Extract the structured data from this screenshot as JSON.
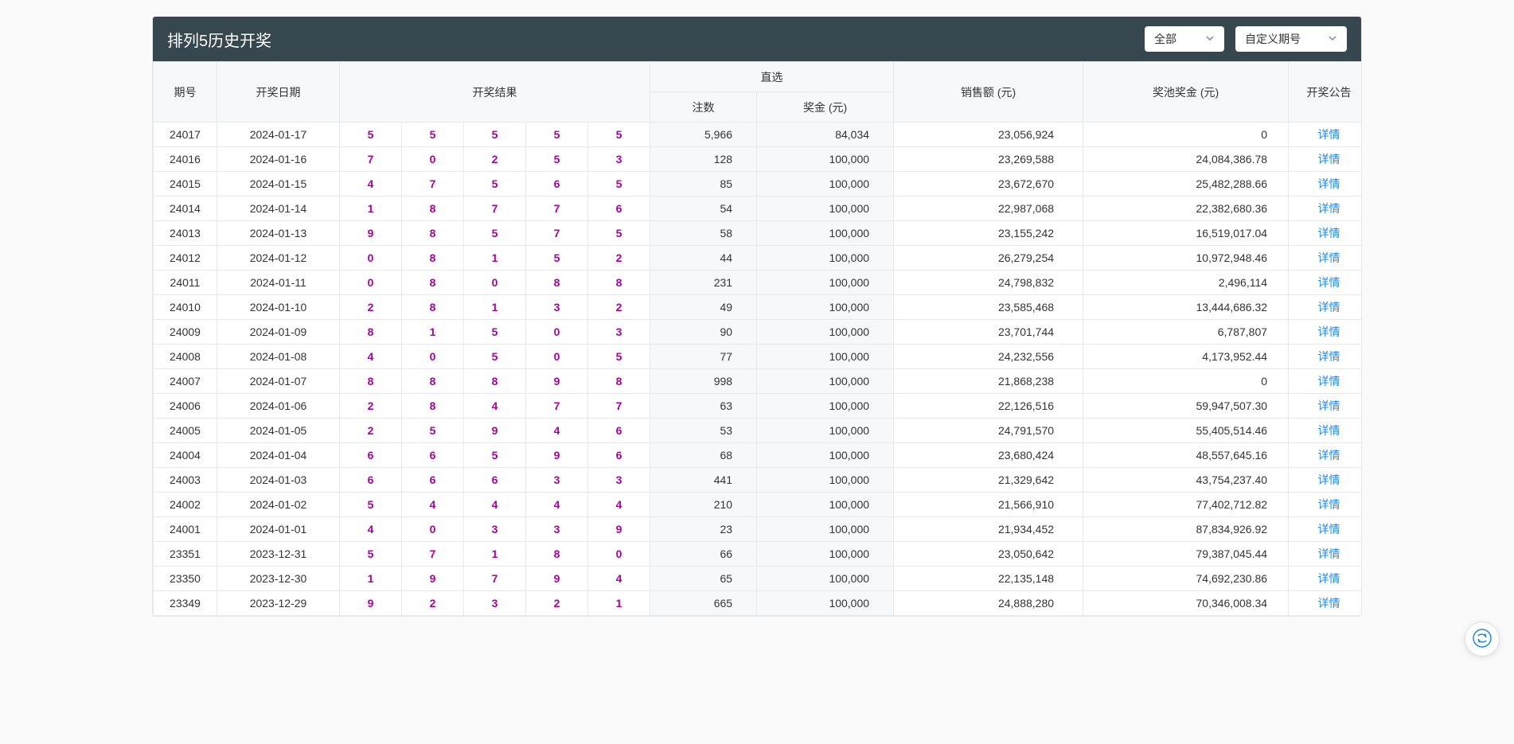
{
  "header": {
    "title": "排列5历史开奖",
    "filter_all": "全部",
    "filter_custom": "自定义期号"
  },
  "columns": {
    "issue": "期号",
    "date": "开奖日期",
    "result": "开奖结果",
    "direct": "直选",
    "bets": "注数",
    "prize": "奖金 (元)",
    "sales": "销售额 (元)",
    "pool": "奖池奖金 (元)",
    "announcement": "开奖公告"
  },
  "detail_label": "详情",
  "rows": [
    {
      "issue": "24017",
      "date": "2024-01-17",
      "balls": [
        "5",
        "5",
        "5",
        "5",
        "5"
      ],
      "bets": "5,966",
      "prize": "84,034",
      "sales": "23,056,924",
      "pool": "0"
    },
    {
      "issue": "24016",
      "date": "2024-01-16",
      "balls": [
        "7",
        "0",
        "2",
        "5",
        "3"
      ],
      "bets": "128",
      "prize": "100,000",
      "sales": "23,269,588",
      "pool": "24,084,386.78"
    },
    {
      "issue": "24015",
      "date": "2024-01-15",
      "balls": [
        "4",
        "7",
        "5",
        "6",
        "5"
      ],
      "bets": "85",
      "prize": "100,000",
      "sales": "23,672,670",
      "pool": "25,482,288.66"
    },
    {
      "issue": "24014",
      "date": "2024-01-14",
      "balls": [
        "1",
        "8",
        "7",
        "7",
        "6"
      ],
      "bets": "54",
      "prize": "100,000",
      "sales": "22,987,068",
      "pool": "22,382,680.36"
    },
    {
      "issue": "24013",
      "date": "2024-01-13",
      "balls": [
        "9",
        "8",
        "5",
        "7",
        "5"
      ],
      "bets": "58",
      "prize": "100,000",
      "sales": "23,155,242",
      "pool": "16,519,017.04"
    },
    {
      "issue": "24012",
      "date": "2024-01-12",
      "balls": [
        "0",
        "8",
        "1",
        "5",
        "2"
      ],
      "bets": "44",
      "prize": "100,000",
      "sales": "26,279,254",
      "pool": "10,972,948.46"
    },
    {
      "issue": "24011",
      "date": "2024-01-11",
      "balls": [
        "0",
        "8",
        "0",
        "8",
        "8"
      ],
      "bets": "231",
      "prize": "100,000",
      "sales": "24,798,832",
      "pool": "2,496,114"
    },
    {
      "issue": "24010",
      "date": "2024-01-10",
      "balls": [
        "2",
        "8",
        "1",
        "3",
        "2"
      ],
      "bets": "49",
      "prize": "100,000",
      "sales": "23,585,468",
      "pool": "13,444,686.32"
    },
    {
      "issue": "24009",
      "date": "2024-01-09",
      "balls": [
        "8",
        "1",
        "5",
        "0",
        "3"
      ],
      "bets": "90",
      "prize": "100,000",
      "sales": "23,701,744",
      "pool": "6,787,807"
    },
    {
      "issue": "24008",
      "date": "2024-01-08",
      "balls": [
        "4",
        "0",
        "5",
        "0",
        "5"
      ],
      "bets": "77",
      "prize": "100,000",
      "sales": "24,232,556",
      "pool": "4,173,952.44"
    },
    {
      "issue": "24007",
      "date": "2024-01-07",
      "balls": [
        "8",
        "8",
        "8",
        "9",
        "8"
      ],
      "bets": "998",
      "prize": "100,000",
      "sales": "21,868,238",
      "pool": "0"
    },
    {
      "issue": "24006",
      "date": "2024-01-06",
      "balls": [
        "2",
        "8",
        "4",
        "7",
        "7"
      ],
      "bets": "63",
      "prize": "100,000",
      "sales": "22,126,516",
      "pool": "59,947,507.30"
    },
    {
      "issue": "24005",
      "date": "2024-01-05",
      "balls": [
        "2",
        "5",
        "9",
        "4",
        "6"
      ],
      "bets": "53",
      "prize": "100,000",
      "sales": "24,791,570",
      "pool": "55,405,514.46"
    },
    {
      "issue": "24004",
      "date": "2024-01-04",
      "balls": [
        "6",
        "6",
        "5",
        "9",
        "6"
      ],
      "bets": "68",
      "prize": "100,000",
      "sales": "23,680,424",
      "pool": "48,557,645.16"
    },
    {
      "issue": "24003",
      "date": "2024-01-03",
      "balls": [
        "6",
        "6",
        "6",
        "3",
        "3"
      ],
      "bets": "441",
      "prize": "100,000",
      "sales": "21,329,642",
      "pool": "43,754,237.40"
    },
    {
      "issue": "24002",
      "date": "2024-01-02",
      "balls": [
        "5",
        "4",
        "4",
        "4",
        "4"
      ],
      "bets": "210",
      "prize": "100,000",
      "sales": "21,566,910",
      "pool": "77,402,712.82"
    },
    {
      "issue": "24001",
      "date": "2024-01-01",
      "balls": [
        "4",
        "0",
        "3",
        "3",
        "9"
      ],
      "bets": "23",
      "prize": "100,000",
      "sales": "21,934,452",
      "pool": "87,834,926.92"
    },
    {
      "issue": "23351",
      "date": "2023-12-31",
      "balls": [
        "5",
        "7",
        "1",
        "8",
        "0"
      ],
      "bets": "66",
      "prize": "100,000",
      "sales": "23,050,642",
      "pool": "79,387,045.44"
    },
    {
      "issue": "23350",
      "date": "2023-12-30",
      "balls": [
        "1",
        "9",
        "7",
        "9",
        "4"
      ],
      "bets": "65",
      "prize": "100,000",
      "sales": "22,135,148",
      "pool": "74,692,230.86"
    },
    {
      "issue": "23349",
      "date": "2023-12-29",
      "balls": [
        "9",
        "2",
        "3",
        "2",
        "1"
      ],
      "bets": "665",
      "prize": "100,000",
      "sales": "24,888,280",
      "pool": "70,346,008.34"
    }
  ],
  "style": {
    "header_bg": "#37474f",
    "ball_color": "#a6029b",
    "link_color": "#1e88e5",
    "border_color": "#e8e8e8",
    "th_bg": "#f7f8fa"
  }
}
